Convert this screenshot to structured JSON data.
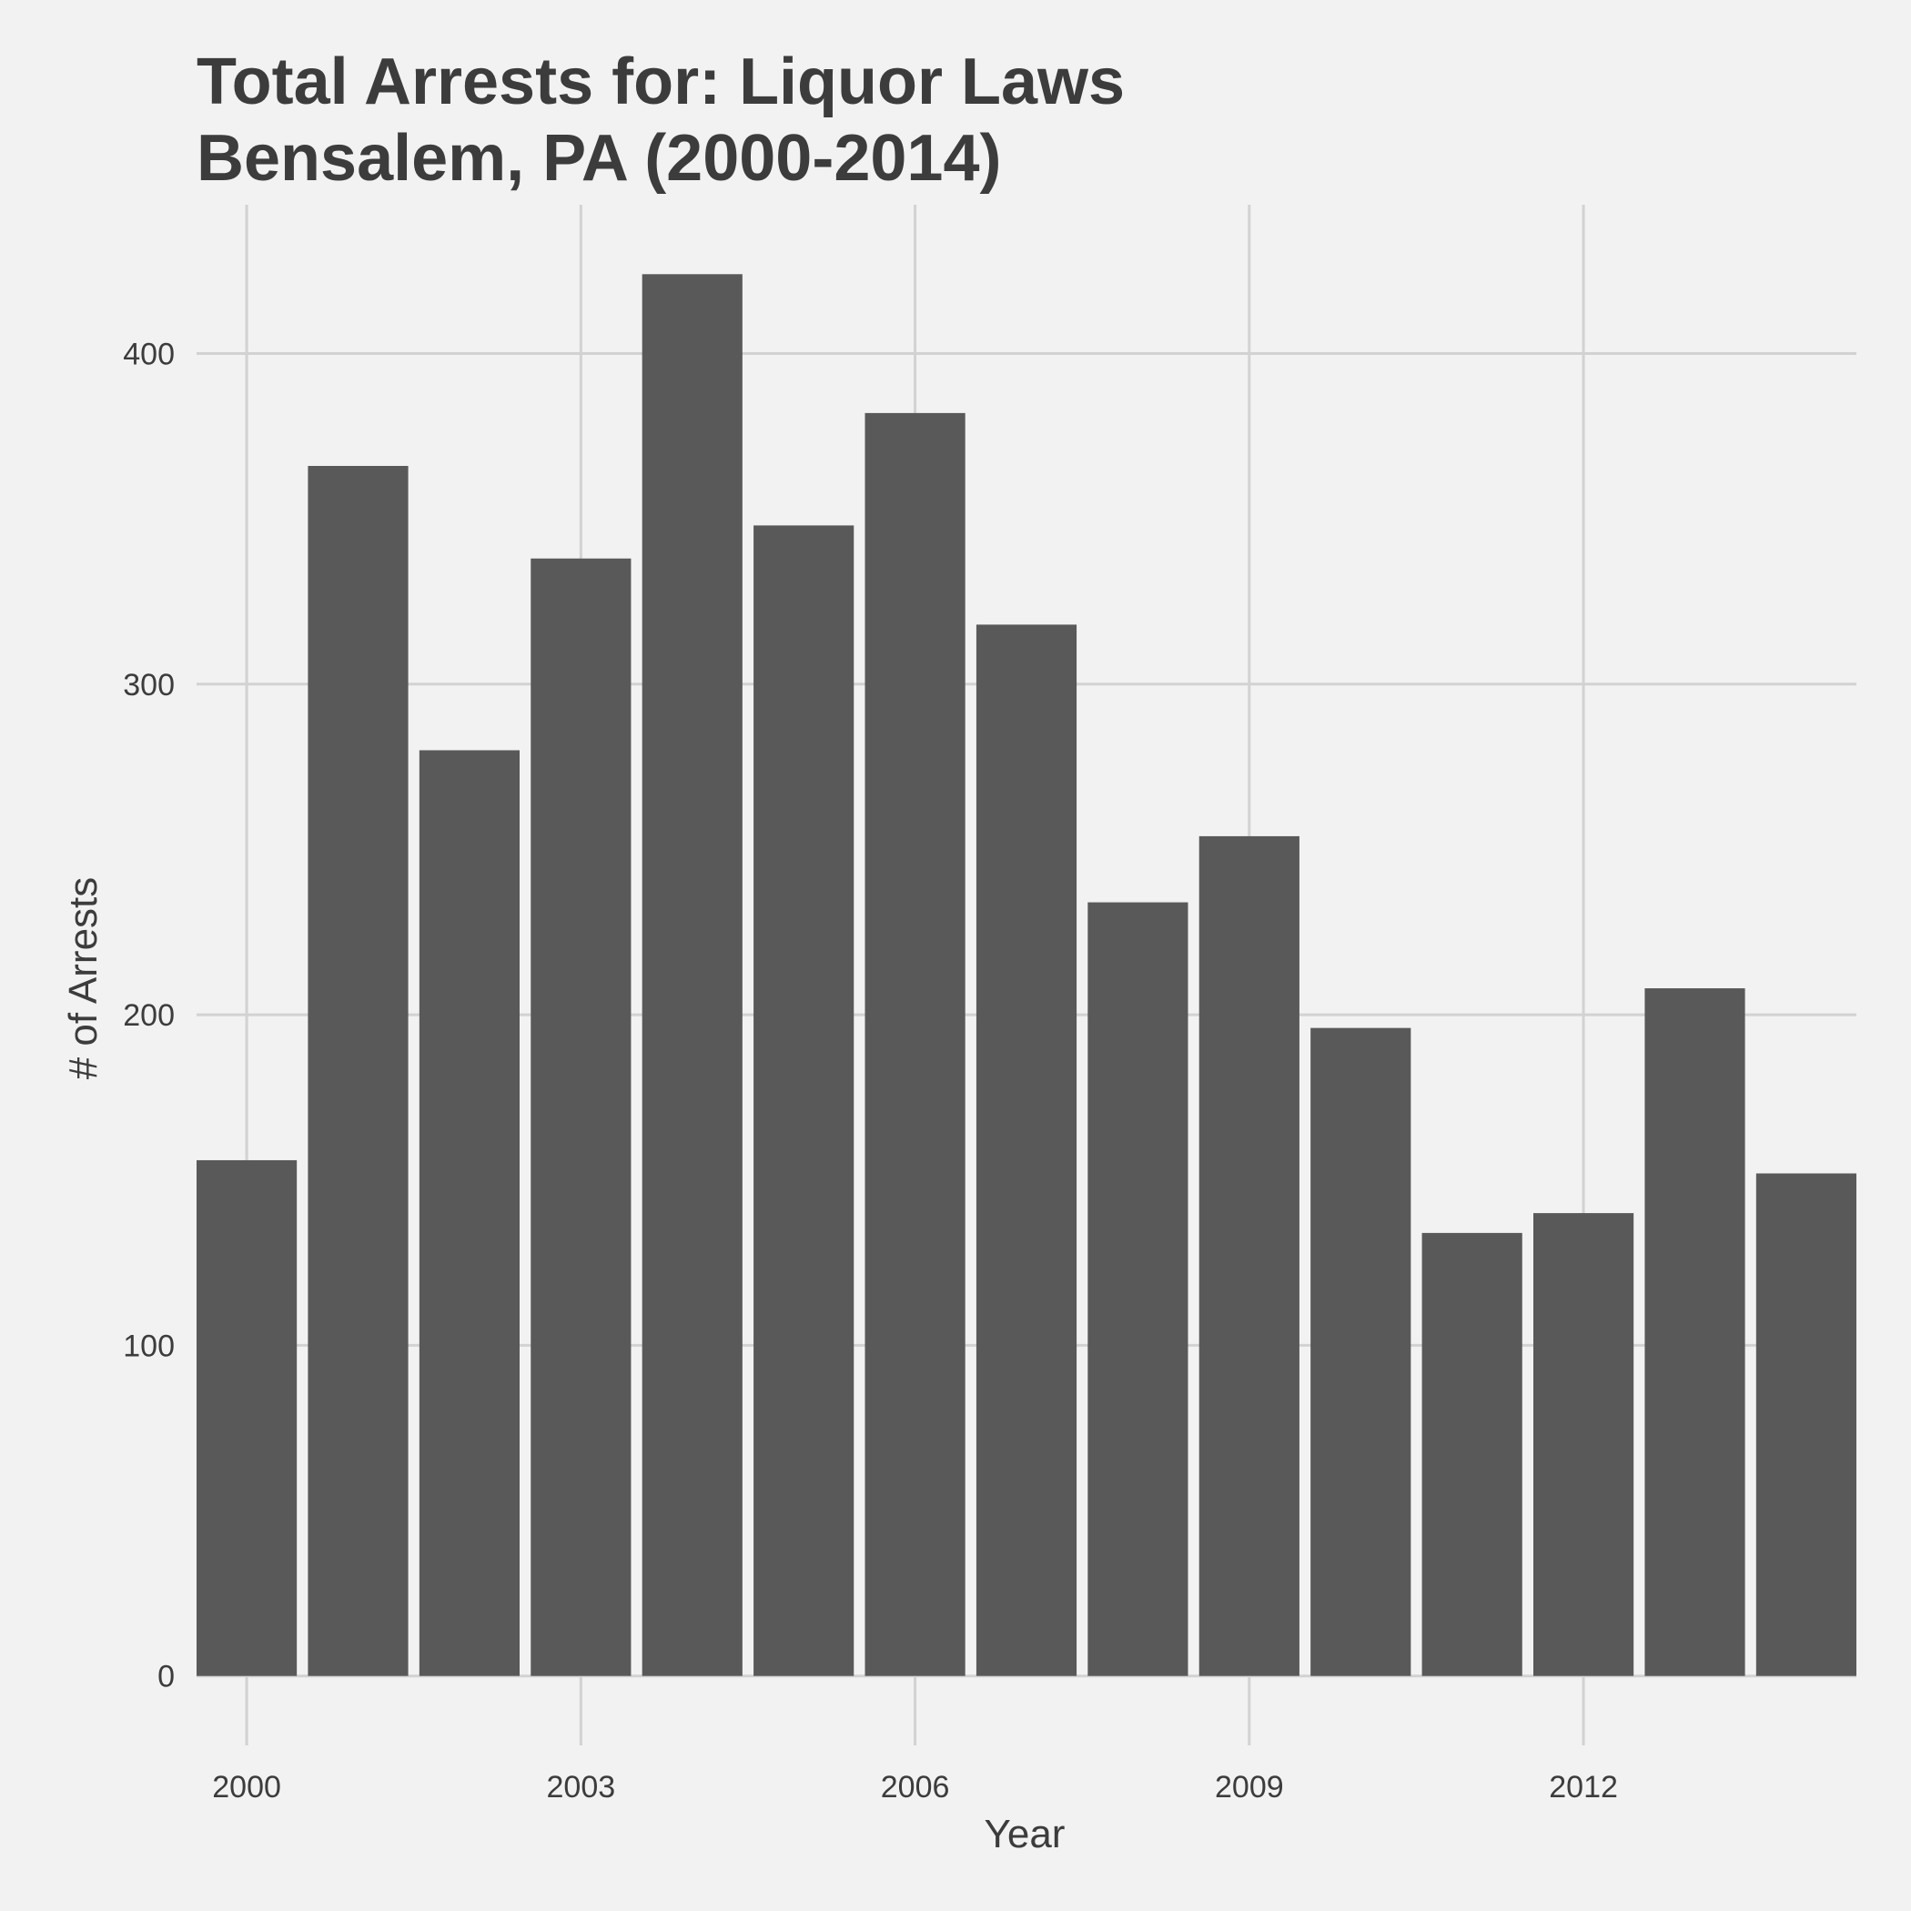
{
  "chart_data": {
    "type": "bar",
    "title_lines": [
      "Total Arrests for: Liquor Laws",
      "Bensalem, PA (2000-2014)"
    ],
    "xlabel": "Year",
    "ylabel": "# of Arrests",
    "x": [
      2000,
      2001,
      2002,
      2003,
      2004,
      2005,
      2006,
      2007,
      2008,
      2009,
      2010,
      2011,
      2012,
      2013,
      2014
    ],
    "values": [
      156,
      366,
      280,
      338,
      424,
      348,
      382,
      318,
      234,
      254,
      196,
      134,
      140,
      208,
      152
    ],
    "xlim": [
      1999.55,
      2014.45
    ],
    "ylim": [
      -21,
      445
    ],
    "x_ticks": [
      2000,
      2003,
      2006,
      2009,
      2012
    ],
    "y_ticks": [
      0,
      100,
      200,
      300,
      400
    ],
    "grid": true,
    "bar_color": "#595959",
    "background": "#f2f2f2",
    "grid_color": "#d2d2d2"
  }
}
